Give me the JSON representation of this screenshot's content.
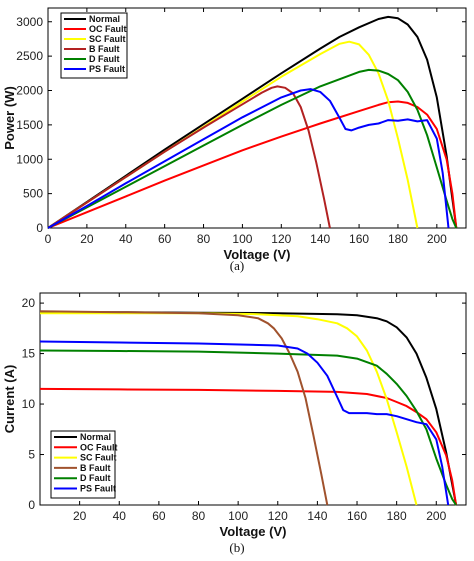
{
  "chart_data": [
    {
      "type": "line",
      "caption": "(a)",
      "xlabel": "Voltage (V)",
      "ylabel": "Power (W)",
      "xlim": [
        0,
        215
      ],
      "ylim": [
        0,
        3200
      ],
      "xticks": [
        0,
        20,
        40,
        60,
        80,
        100,
        120,
        140,
        160,
        180,
        200
      ],
      "yticks": [
        0,
        500,
        1000,
        1500,
        2000,
        2500,
        3000
      ],
      "grid": false,
      "legend_position": "top-left",
      "series": [
        {
          "name": "Normal",
          "color": "#000000",
          "x": [
            0,
            20,
            40,
            60,
            80,
            100,
            120,
            140,
            150,
            160,
            170,
            175,
            180,
            185,
            190,
            195,
            200,
            205,
            208,
            210
          ],
          "y": [
            0,
            380,
            760,
            1140,
            1510,
            1880,
            2250,
            2610,
            2780,
            2920,
            3040,
            3070,
            3050,
            2960,
            2780,
            2450,
            1900,
            1050,
            420,
            0
          ]
        },
        {
          "name": "OC Fault",
          "color": "#ff0000",
          "x": [
            0,
            20,
            40,
            60,
            80,
            100,
            120,
            140,
            160,
            170,
            175,
            180,
            185,
            190,
            195,
            200,
            205,
            208,
            210
          ],
          "y": [
            0,
            230,
            460,
            690,
            910,
            1130,
            1330,
            1520,
            1700,
            1790,
            1830,
            1840,
            1820,
            1760,
            1650,
            1440,
            1000,
            500,
            0
          ]
        },
        {
          "name": "SC Fault",
          "color": "#ffff00",
          "x": [
            0,
            20,
            40,
            60,
            80,
            100,
            120,
            140,
            150,
            155,
            160,
            165,
            170,
            175,
            180,
            185,
            190
          ],
          "y": [
            0,
            370,
            740,
            1110,
            1470,
            1840,
            2200,
            2530,
            2680,
            2710,
            2670,
            2520,
            2250,
            1850,
            1300,
            700,
            0
          ]
        },
        {
          "name": "B Fault",
          "color": "#b22222",
          "x": [
            0,
            20,
            40,
            60,
            80,
            100,
            110,
            115,
            118,
            122,
            126,
            130,
            134,
            138,
            142,
            145
          ],
          "y": [
            0,
            370,
            740,
            1110,
            1460,
            1800,
            1970,
            2040,
            2060,
            2040,
            1960,
            1760,
            1420,
            950,
            420,
            0
          ]
        },
        {
          "name": "D Fault",
          "color": "#008000",
          "x": [
            0,
            20,
            40,
            60,
            80,
            100,
            120,
            140,
            160,
            165,
            170,
            175,
            180,
            185,
            190,
            195,
            200,
            205,
            208,
            210
          ],
          "y": [
            0,
            300,
            600,
            900,
            1200,
            1500,
            1790,
            2060,
            2270,
            2300,
            2290,
            2240,
            2150,
            1980,
            1720,
            1350,
            880,
            400,
            130,
            0
          ]
        },
        {
          "name": "PS Fault",
          "color": "#0000ff",
          "x": [
            0,
            20,
            40,
            60,
            80,
            100,
            120,
            130,
            135,
            140,
            145,
            150,
            153,
            156,
            160,
            165,
            170,
            175,
            180,
            185,
            190,
            195,
            200,
            203,
            206
          ],
          "y": [
            0,
            320,
            650,
            970,
            1290,
            1610,
            1900,
            2000,
            2020,
            1980,
            1850,
            1600,
            1440,
            1420,
            1460,
            1500,
            1520,
            1570,
            1560,
            1580,
            1550,
            1570,
            1300,
            800,
            0
          ]
        }
      ]
    },
    {
      "type": "line",
      "caption": "(b)",
      "xlabel": "Voltage (V)",
      "ylabel": "Current (A)",
      "xlim": [
        0,
        215
      ],
      "ylim": [
        0,
        21
      ],
      "xticks": [
        20,
        40,
        60,
        80,
        100,
        120,
        140,
        160,
        180,
        200
      ],
      "yticks": [
        0,
        5,
        10,
        15,
        20
      ],
      "grid": false,
      "legend_position": "bottom-left",
      "series": [
        {
          "name": "Normal",
          "color": "#000000",
          "x": [
            0,
            40,
            80,
            120,
            150,
            160,
            170,
            175,
            180,
            185,
            190,
            195,
            200,
            205,
            208,
            210
          ],
          "y": [
            19.1,
            19.1,
            19.05,
            19.0,
            18.9,
            18.8,
            18.5,
            18.2,
            17.6,
            16.6,
            15.0,
            12.6,
            9.5,
            5.2,
            2.1,
            0
          ]
        },
        {
          "name": "OC Fault",
          "color": "#ff0000",
          "x": [
            0,
            40,
            80,
            120,
            150,
            165,
            175,
            180,
            185,
            190,
            195,
            200,
            205,
            208,
            210
          ],
          "y": [
            11.5,
            11.45,
            11.4,
            11.3,
            11.2,
            11.0,
            10.6,
            10.2,
            9.8,
            9.2,
            8.5,
            7.2,
            4.9,
            2.5,
            0
          ]
        },
        {
          "name": "SC Fault",
          "color": "#ffff00",
          "x": [
            0,
            40,
            80,
            110,
            130,
            140,
            150,
            155,
            160,
            165,
            170,
            175,
            180,
            185,
            190
          ],
          "y": [
            19.0,
            19.0,
            19.0,
            18.9,
            18.7,
            18.4,
            18.0,
            17.5,
            16.7,
            15.3,
            13.2,
            10.5,
            7.2,
            3.8,
            0
          ]
        },
        {
          "name": "B Fault",
          "color": "#a0522d",
          "x": [
            0,
            40,
            80,
            100,
            110,
            115,
            118,
            122,
            126,
            130,
            134,
            138,
            142,
            145
          ],
          "y": [
            19.2,
            19.1,
            19.0,
            18.8,
            18.5,
            18.0,
            17.5,
            16.5,
            15.0,
            13.2,
            10.6,
            6.9,
            3.0,
            0
          ]
        },
        {
          "name": "D Fault",
          "color": "#008000",
          "x": [
            0,
            40,
            80,
            120,
            150,
            160,
            170,
            175,
            180,
            185,
            190,
            195,
            200,
            205,
            208,
            210
          ],
          "y": [
            15.3,
            15.25,
            15.2,
            15.0,
            14.8,
            14.5,
            13.8,
            13.0,
            12.0,
            10.8,
            9.3,
            7.5,
            4.6,
            2.0,
            0.6,
            0
          ]
        },
        {
          "name": "PS Fault",
          "color": "#0000ff",
          "x": [
            0,
            40,
            80,
            120,
            130,
            135,
            140,
            145,
            150,
            153,
            156,
            160,
            165,
            170,
            175,
            180,
            185,
            190,
            195,
            200,
            203,
            206
          ],
          "y": [
            16.2,
            16.1,
            16.0,
            15.8,
            15.5,
            15.0,
            14.1,
            12.8,
            10.7,
            9.4,
            9.1,
            9.1,
            9.1,
            9.0,
            9.0,
            8.8,
            8.5,
            8.2,
            8.0,
            6.5,
            3.8,
            0
          ]
        }
      ]
    }
  ]
}
